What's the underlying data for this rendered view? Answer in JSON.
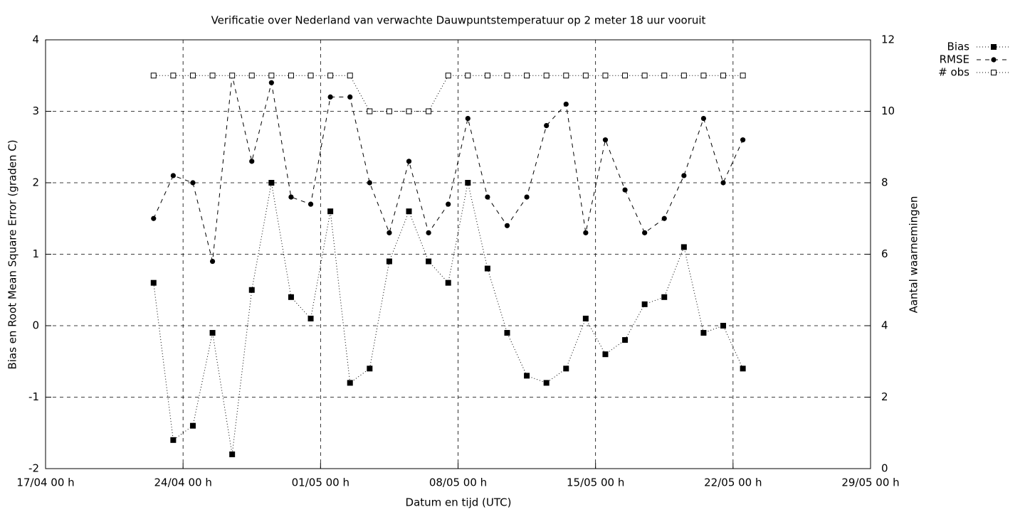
{
  "chart_data": {
    "type": "line",
    "title": "Verificatie over Nederland van verwachte Dauwpuntstemperatuur op 2 meter 18 uur vooruit",
    "x_label": "Datum en tijd (UTC)",
    "y_label": "Bias en Root Mean Square Error (graden C)",
    "y2_label": "Aantal waarnemingen",
    "x": [
      "22/04 12 h",
      "23/04 12 h",
      "24/04 12 h",
      "25/04 12 h",
      "26/04 12 h",
      "27/04 12 h",
      "28/04 12 h",
      "29/04 12 h",
      "30/04 12 h",
      "01/05 12 h",
      "02/05 12 h",
      "03/05 12 h",
      "04/05 12 h",
      "05/05 12 h",
      "06/05 12 h",
      "07/05 12 h",
      "08/05 12 h",
      "09/05 12 h",
      "10/05 12 h",
      "11/05 12 h",
      "12/05 12 h",
      "13/05 12 h",
      "14/05 12 h",
      "15/05 12 h",
      "16/05 12 h",
      "17/05 12 h",
      "18/05 12 h",
      "19/05 12 h",
      "20/05 12 h",
      "21/05 12 h",
      "22/05 12 h"
    ],
    "series": [
      {
        "name": "Bias",
        "color": "#000000",
        "marker": "square-filled",
        "dash": "dotted",
        "values": [
          0.6,
          -1.6,
          -1.4,
          -0.1,
          -1.8,
          0.5,
          2.0,
          0.4,
          0.1,
          1.6,
          -0.8,
          -0.6,
          0.9,
          1.6,
          0.9,
          0.6,
          2.0,
          0.8,
          -0.1,
          -0.7,
          -0.8,
          -0.6,
          0.1,
          -0.4,
          -0.2,
          0.3,
          0.4,
          1.1,
          -0.1,
          0.0,
          -0.6
        ]
      },
      {
        "name": "RMSE",
        "color": "#000000",
        "marker": "circle-filled",
        "dash": "dashed",
        "values": [
          1.5,
          2.1,
          2.0,
          0.9,
          3.5,
          2.3,
          3.4,
          1.8,
          1.7,
          3.2,
          3.2,
          2.0,
          1.3,
          2.3,
          1.3,
          1.7,
          2.9,
          1.8,
          1.4,
          1.8,
          2.8,
          3.1,
          1.3,
          2.6,
          1.9,
          1.3,
          1.5,
          2.1,
          2.9,
          2.0,
          2.6
        ]
      },
      {
        "name": "# obs",
        "color": "#000000",
        "marker": "square-open",
        "dash": "dotted",
        "axis": "y2",
        "values": [
          11,
          11,
          11,
          11,
          11,
          11,
          11,
          11,
          11,
          11,
          11,
          10,
          10,
          10,
          10,
          11,
          11,
          11,
          11,
          11,
          11,
          11,
          11,
          11,
          11,
          11,
          11,
          11,
          11,
          11,
          11
        ]
      }
    ],
    "xlim": [
      "17/04 00 h",
      "29/05 00 h"
    ],
    "xticks": [
      "17/04 00 h",
      "24/04 00 h",
      "01/05 00 h",
      "08/05 00 h",
      "15/05 00 h",
      "22/05 00 h",
      "29/05 00 h"
    ],
    "ylim": [
      -2,
      4
    ],
    "yticks": [
      -2,
      -1,
      0,
      1,
      2,
      3,
      4
    ],
    "y2lim": [
      0,
      12
    ],
    "y2ticks": [
      0,
      2,
      4,
      6,
      8,
      10,
      12
    ],
    "grid": true,
    "legend": "top-right"
  }
}
